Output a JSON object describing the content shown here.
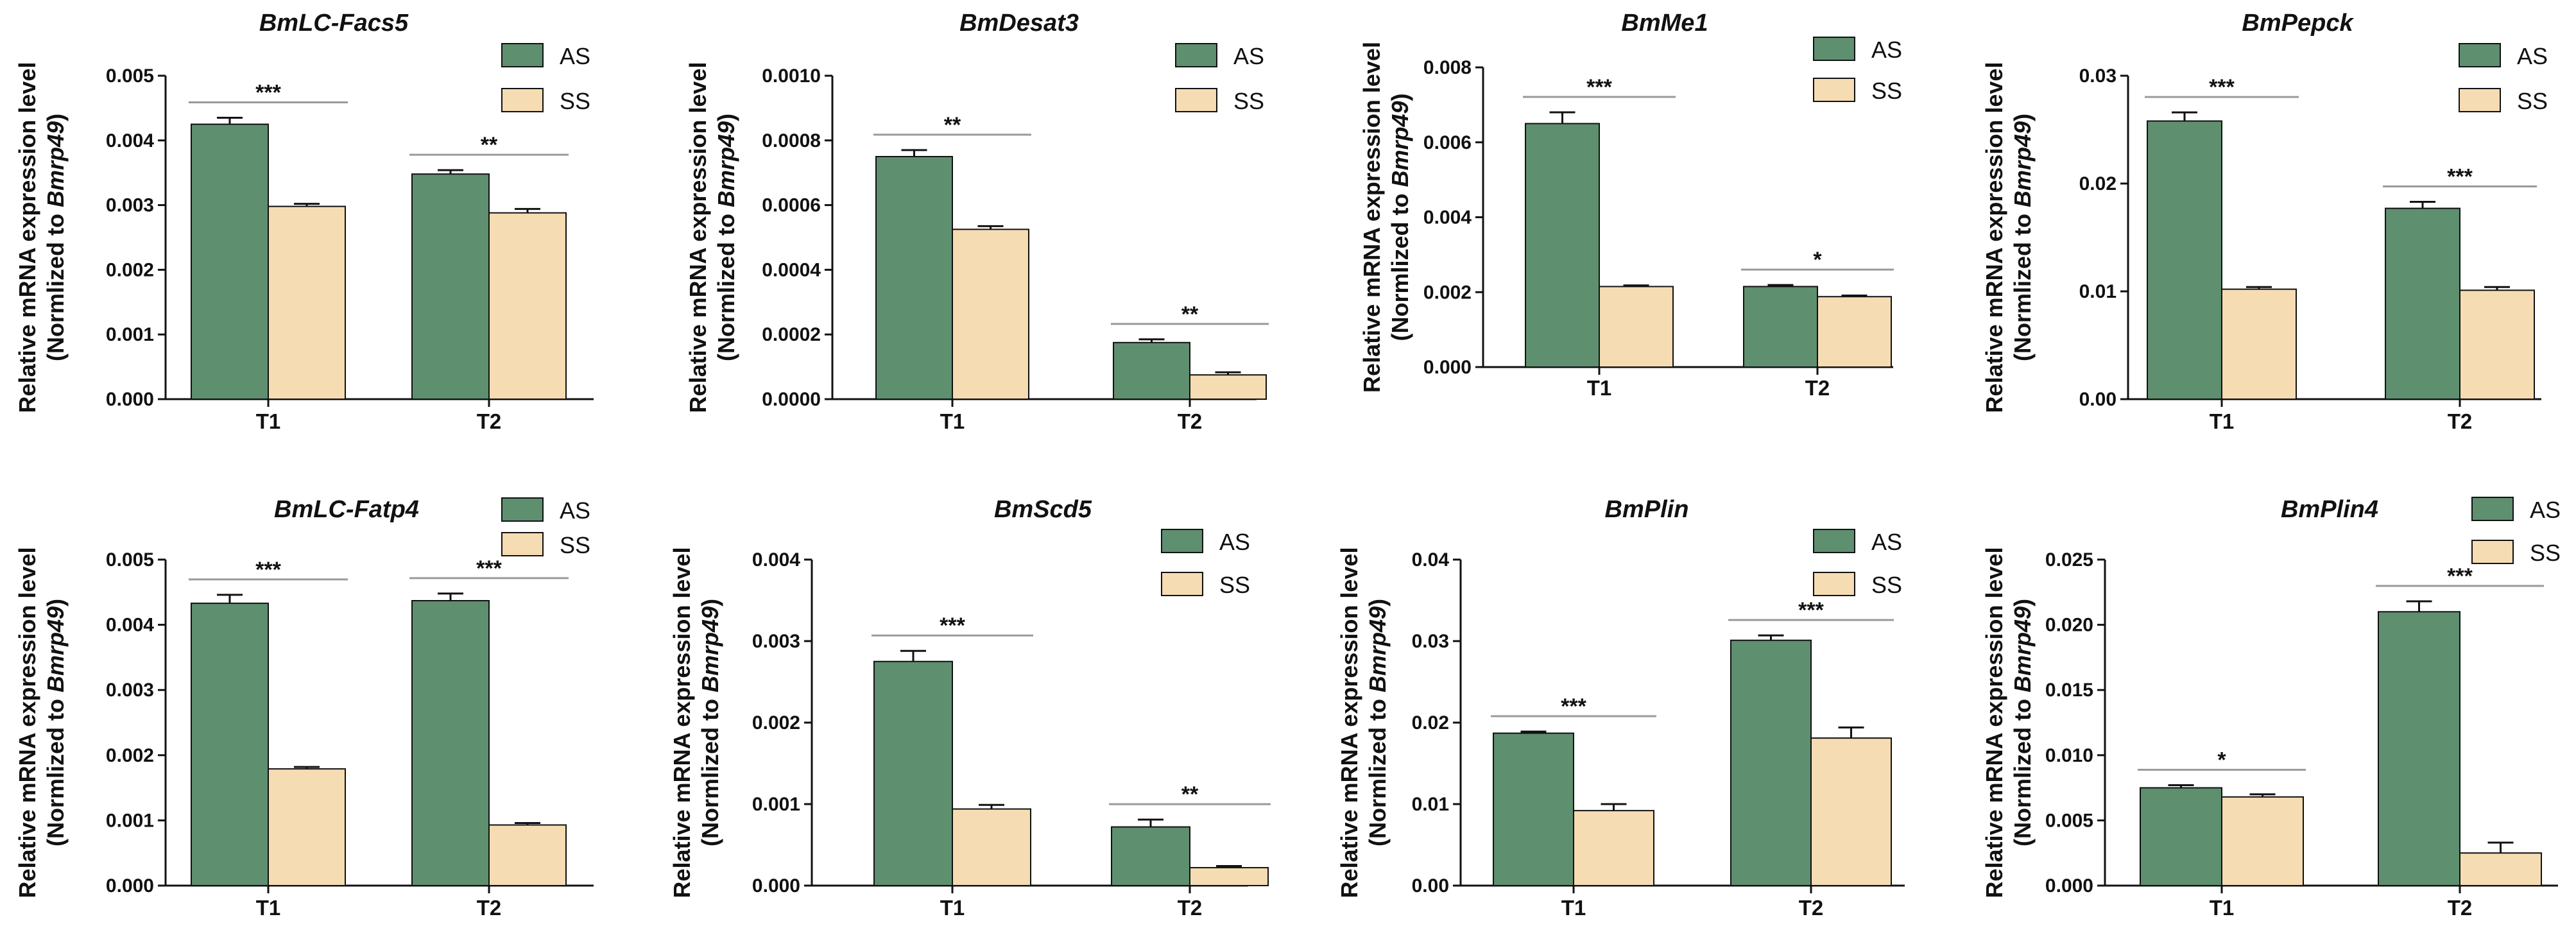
{
  "colors": {
    "AS": "#5e8f6f",
    "SS": "#f6dcb2",
    "axis": "#111111",
    "sigline": "#9a9a9a"
  },
  "ylabel_line1": "Relative mRNA expression level",
  "ylabel_line2_prefix": "(Normlized to ",
  "ylabel_line2_gene": "Bmrp49",
  "ylabel_line2_suffix": ")",
  "chart_data": [
    {
      "type": "bar",
      "title": "BmLC-Facs5",
      "categories": [
        "T1",
        "T2"
      ],
      "series": [
        {
          "name": "AS",
          "values": [
            0.00425,
            0.00348
          ],
          "errors": [
            0.0001,
            6e-05
          ]
        },
        {
          "name": "SS",
          "values": [
            0.00298,
            0.00288
          ],
          "errors": [
            4e-05,
            6e-05
          ]
        }
      ],
      "ylim": [
        0,
        0.005
      ],
      "yticks": [
        "0.000",
        "0.001",
        "0.002",
        "0.003",
        "0.004",
        "0.005"
      ],
      "significance": [
        "***",
        "**"
      ],
      "legend": "top-right"
    },
    {
      "type": "bar",
      "title": "BmDesat3",
      "categories": [
        "T1",
        "T2"
      ],
      "series": [
        {
          "name": "AS",
          "values": [
            0.00075,
            0.000175
          ],
          "errors": [
            2e-05,
            1e-05
          ]
        },
        {
          "name": "SS",
          "values": [
            0.000525,
            7.5e-05
          ],
          "errors": [
            1e-05,
            8e-06
          ]
        }
      ],
      "ylim": [
        0,
        0.001
      ],
      "yticks": [
        "0.0000",
        "0.0002",
        "0.0004",
        "0.0006",
        "0.0008",
        "0.0010"
      ],
      "significance": [
        "**",
        "**"
      ],
      "legend": "top-right"
    },
    {
      "type": "bar",
      "title": "BmMe1",
      "categories": [
        "T1",
        "T2"
      ],
      "series": [
        {
          "name": "AS",
          "values": [
            0.0065,
            0.00215
          ],
          "errors": [
            0.0003,
            4e-05
          ]
        },
        {
          "name": "SS",
          "values": [
            0.00215,
            0.00188
          ],
          "errors": [
            3e-05,
            3e-05
          ]
        }
      ],
      "ylim": [
        0,
        0.008
      ],
      "yticks": [
        "0.000",
        "0.002",
        "0.004",
        "0.006",
        "0.008"
      ],
      "significance": [
        "***",
        "*"
      ],
      "legend": "top-right"
    },
    {
      "type": "bar",
      "title": "BmPepck",
      "categories": [
        "T1",
        "T2"
      ],
      "series": [
        {
          "name": "AS",
          "values": [
            0.0258,
            0.0177
          ],
          "errors": [
            0.0008,
            0.0006
          ]
        },
        {
          "name": "SS",
          "values": [
            0.0102,
            0.0101
          ],
          "errors": [
            0.0002,
            0.0003
          ]
        }
      ],
      "ylim": [
        0,
        0.03
      ],
      "yticks": [
        "0.00",
        "0.01",
        "0.02",
        "0.03"
      ],
      "significance": [
        "***",
        "***"
      ],
      "legend": "top-right"
    },
    {
      "type": "bar",
      "title": "BmLC-Fatp4",
      "categories": [
        "T1",
        "T2"
      ],
      "series": [
        {
          "name": "AS",
          "values": [
            0.00433,
            0.00437
          ],
          "errors": [
            0.00013,
            0.00011
          ]
        },
        {
          "name": "SS",
          "values": [
            0.00179,
            0.00093
          ],
          "errors": [
            3e-05,
            3e-05
          ]
        }
      ],
      "ylim": [
        0,
        0.005
      ],
      "yticks": [
        "0.000",
        "0.001",
        "0.002",
        "0.003",
        "0.004",
        "0.005"
      ],
      "significance": [
        "***",
        "***"
      ],
      "legend": "top-right"
    },
    {
      "type": "bar",
      "title": "BmScd5",
      "categories": [
        "T1",
        "T2"
      ],
      "series": [
        {
          "name": "AS",
          "values": [
            0.00275,
            0.00072
          ],
          "errors": [
            0.00013,
            9e-05
          ]
        },
        {
          "name": "SS",
          "values": [
            0.00094,
            0.00022
          ],
          "errors": [
            5e-05,
            2e-05
          ]
        }
      ],
      "ylim": [
        0,
        0.004
      ],
      "yticks": [
        "0.000",
        "0.001",
        "0.002",
        "0.003",
        "0.004"
      ],
      "significance": [
        "***",
        "**"
      ],
      "legend": "top-right"
    },
    {
      "type": "bar",
      "title": "BmPlin",
      "categories": [
        "T1",
        "T2"
      ],
      "series": [
        {
          "name": "AS",
          "values": [
            0.0187,
            0.0301
          ],
          "errors": [
            0.0002,
            0.0006
          ]
        },
        {
          "name": "SS",
          "values": [
            0.0092,
            0.0181
          ],
          "errors": [
            0.0008,
            0.0013
          ]
        }
      ],
      "ylim": [
        0,
        0.04
      ],
      "yticks": [
        "0.00",
        "0.01",
        "0.02",
        "0.03",
        "0.04"
      ],
      "significance": [
        "***",
        "***"
      ],
      "legend": "top-right"
    },
    {
      "type": "bar",
      "title": "BmPlin4",
      "categories": [
        "T1",
        "T2"
      ],
      "series": [
        {
          "name": "AS",
          "values": [
            0.0075,
            0.021
          ],
          "errors": [
            0.0002,
            0.0008
          ]
        },
        {
          "name": "SS",
          "values": [
            0.0068,
            0.0025
          ],
          "errors": [
            0.0002,
            0.0008
          ]
        }
      ],
      "ylim": [
        0,
        0.025
      ],
      "yticks": [
        "0.000",
        "0.005",
        "0.010",
        "0.015",
        "0.020",
        "0.025"
      ],
      "significance": [
        "*",
        "***"
      ],
      "legend": "top-right"
    }
  ]
}
